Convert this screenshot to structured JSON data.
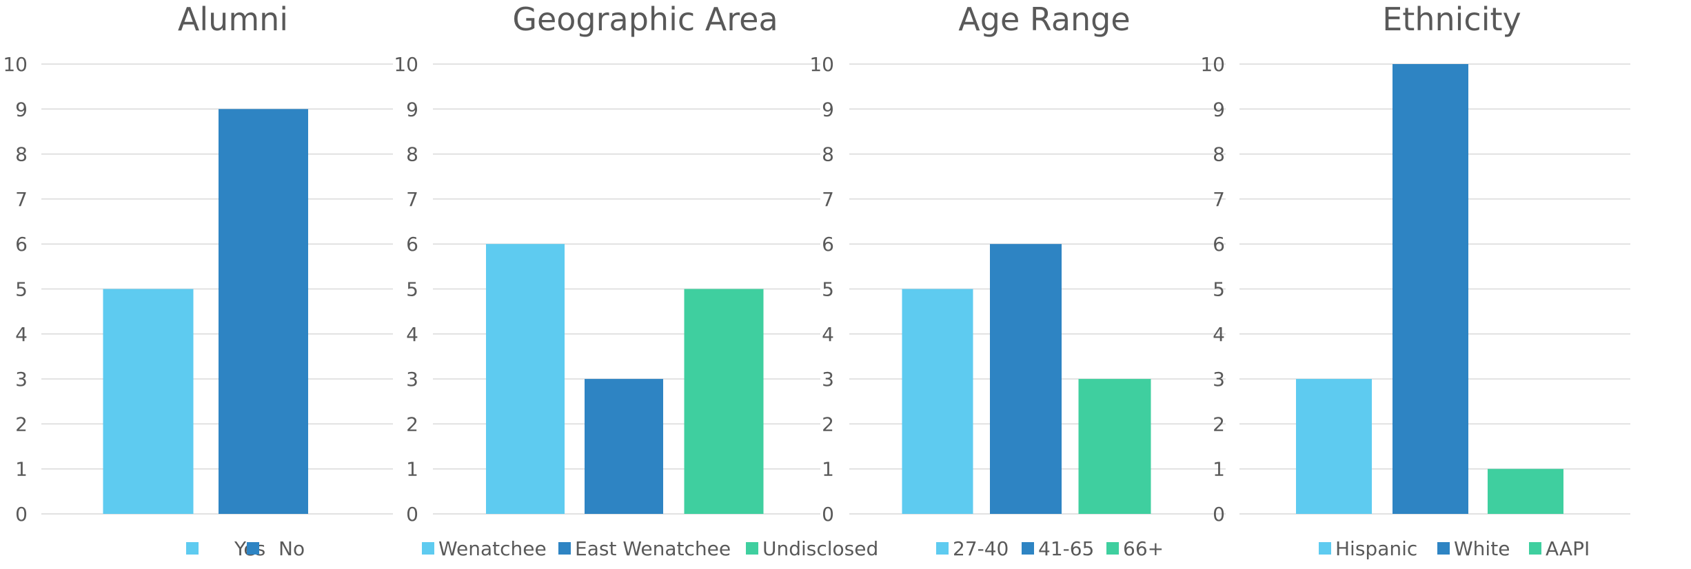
{
  "colors": {
    "light_blue": "#5ecbf0",
    "mid_blue": "#2e84c3",
    "teal": "#3fcf9f",
    "grid": "#d9d9d9",
    "text": "#595959"
  },
  "chart_data": [
    {
      "type": "bar",
      "title": "Alumni",
      "categories": [
        "Yes",
        "No"
      ],
      "values": [
        5,
        9
      ],
      "ylim": [
        0,
        10
      ],
      "yticks": [
        0,
        1,
        2,
        3,
        4,
        5,
        6,
        7,
        8,
        9,
        10
      ],
      "grid": true,
      "legend": "bottom",
      "legend_labels": [
        "Yes",
        "No"
      ]
    },
    {
      "type": "bar",
      "title": "Geographic Area",
      "categories": [
        "Wenatchee",
        "East Wenatchee",
        "Undisclosed"
      ],
      "values": [
        6,
        3,
        5
      ],
      "ylim": [
        0,
        10
      ],
      "yticks": [
        0,
        1,
        2,
        3,
        4,
        5,
        6,
        7,
        8,
        9,
        10
      ],
      "grid": true,
      "legend": "bottom",
      "legend_labels": [
        "Wenatchee",
        "East Wenatchee",
        "Undisclosed"
      ]
    },
    {
      "type": "bar",
      "title": "Age Range",
      "categories": [
        "27-40",
        "41-65",
        "66+"
      ],
      "values": [
        5,
        6,
        3
      ],
      "ylim": [
        0,
        10
      ],
      "yticks": [
        0,
        1,
        2,
        3,
        4,
        5,
        6,
        7,
        8,
        9,
        10
      ],
      "grid": true,
      "legend": "bottom",
      "legend_labels": [
        "27-40",
        "41-65",
        "66+"
      ]
    },
    {
      "type": "bar",
      "title": "Ethnicity",
      "categories": [
        "Hispanic",
        "White",
        "AAPI"
      ],
      "values": [
        3,
        10,
        1
      ],
      "ylim": [
        0,
        10
      ],
      "yticks": [
        0,
        1,
        2,
        3,
        4,
        5,
        6,
        7,
        8,
        9,
        10
      ],
      "grid": true,
      "legend": "bottom",
      "legend_labels": [
        "Hispanic",
        "White",
        "AAPI"
      ]
    }
  ]
}
